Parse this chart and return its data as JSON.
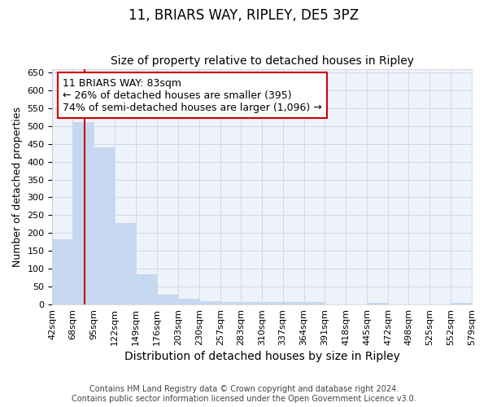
{
  "title": "11, BRIARS WAY, RIPLEY, DE5 3PZ",
  "subtitle": "Size of property relative to detached houses in Ripley",
  "xlabel": "Distribution of detached houses by size in Ripley",
  "ylabel": "Number of detached properties",
  "footer": "Contains HM Land Registry data © Crown copyright and database right 2024.\nContains public sector information licensed under the Open Government Licence v3.0.",
  "bar_lefts": [
    42,
    68,
    95,
    122,
    149,
    176,
    203,
    230,
    257,
    283,
    310,
    337,
    364,
    391,
    418,
    445,
    472,
    498,
    525,
    552
  ],
  "bar_rights": [
    68,
    95,
    122,
    149,
    176,
    203,
    230,
    257,
    283,
    310,
    337,
    364,
    391,
    418,
    445,
    472,
    498,
    525,
    552,
    579
  ],
  "bar_heights": [
    183,
    510,
    440,
    228,
    85,
    28,
    15,
    10,
    7,
    6,
    6,
    6,
    8,
    0,
    0,
    5,
    0,
    0,
    0,
    5
  ],
  "bar_color": "#c5d8f0",
  "grid_color": "#d0d8ea",
  "background_color": "#eef2fa",
  "property_size": 83,
  "vline_color": "#cc0000",
  "annotation_text": "11 BRIARS WAY: 83sqm\n← 26% of detached houses are smaller (395)\n74% of semi-detached houses are larger (1,096) →",
  "annotation_box_edgecolor": "#cc0000",
  "ylim": [
    0,
    660
  ],
  "yticks": [
    0,
    50,
    100,
    150,
    200,
    250,
    300,
    350,
    400,
    450,
    500,
    550,
    600,
    650
  ],
  "xlim_left": 42,
  "xlim_right": 579,
  "title_fontsize": 12,
  "subtitle_fontsize": 10,
  "xlabel_fontsize": 10,
  "ylabel_fontsize": 9,
  "tick_fontsize": 8,
  "annotation_fontsize": 9
}
